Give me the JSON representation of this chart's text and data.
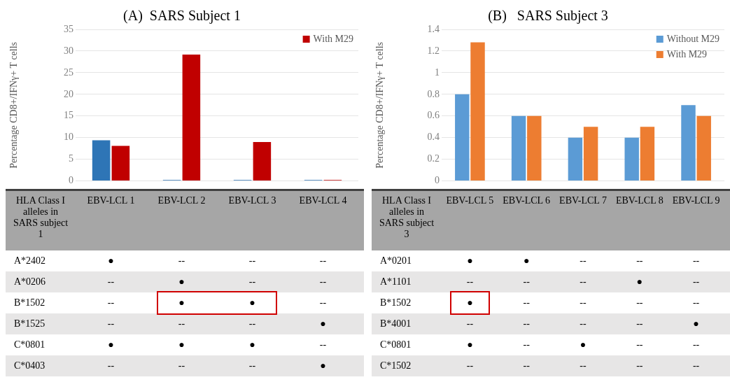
{
  "chart_data": [
    {
      "type": "bar",
      "title": "(A)  SARS Subject 1",
      "ylabel": "Percentage CD8+/IFNγ+ T cells",
      "categories": [
        null,
        null,
        null,
        null
      ],
      "series": [
        {
          "color": "#2e75b6",
          "values": [
            9.4,
            0.2,
            0.2,
            0.2
          ]
        },
        {
          "name": "With M29",
          "color": "#c00000",
          "values": [
            8.1,
            29.2,
            9.0,
            0.2
          ]
        }
      ],
      "ylim": [
        0,
        35
      ],
      "yticks": [
        0,
        5,
        10,
        15,
        20,
        25,
        30,
        35
      ],
      "grid": "y",
      "legend": "top right",
      "tick_labels": "y"
    },
    {
      "type": "other",
      "ylabel": "HLA Class I alleles in SARS subject 1",
      "categories": [
        "EBV-LCL 1",
        "EBV-LCL 2",
        "EBV-LCL 3",
        "EBV-LCL 4"
      ],
      "y_categories": [
        "A*2402",
        "A*0206",
        "B*1502",
        "B*1525",
        "C*0801",
        "C*0403"
      ],
      "cell_labels": [
        [
          "●",
          "--",
          "--",
          "--"
        ],
        [
          "--",
          "●",
          "--",
          "--"
        ],
        [
          "--",
          "●",
          "●",
          "--"
        ],
        [
          "--",
          "--",
          "--",
          "●"
        ],
        [
          "●",
          "●",
          "●",
          "--"
        ],
        [
          "--",
          "--",
          "--",
          "●"
        ]
      ]
    },
    {
      "type": "bar",
      "title": "(B)   SARS Subject 3",
      "ylabel": "Percentage CD8+/IFNγ+ T cells",
      "categories": [
        null,
        null,
        null,
        null,
        null
      ],
      "series": [
        {
          "name": "Without M29",
          "color": "#5b9bd5",
          "values": [
            0.8,
            0.6,
            0.4,
            0.4,
            0.7
          ]
        },
        {
          "name": "With M29",
          "color": "#ed7d31",
          "values": [
            1.28,
            0.6,
            0.5,
            0.5,
            0.6
          ]
        }
      ],
      "ylim": [
        0,
        1.4
      ],
      "yticks": [
        0,
        0.2,
        0.4,
        0.6,
        0.8,
        1,
        1.2,
        1.4
      ],
      "grid": "y",
      "legend": "top right",
      "tick_labels": "y"
    },
    {
      "type": "other",
      "ylabel": "HLA Class I alleles in SARS subject 3",
      "categories": [
        "EBV-LCL 5",
        "EBV-LCL 6",
        "EBV-LCL 7",
        "EBV-LCL 8",
        "EBV-LCL 9"
      ],
      "y_categories": [
        "A*0201",
        "A*1101",
        "B*1502",
        "B*4001",
        "C*0801",
        "C*1502"
      ],
      "cell_labels": [
        [
          "●",
          "●",
          "--",
          "--",
          "--"
        ],
        [
          "--",
          "--",
          "--",
          "●",
          "--"
        ],
        [
          "●",
          "--",
          "--",
          "--",
          "--"
        ],
        [
          "--",
          "--",
          "--",
          "--",
          "●"
        ],
        [
          "●",
          "--",
          "●",
          "--",
          "--"
        ],
        [
          "--",
          "--",
          "--",
          "--",
          "--"
        ]
      ]
    }
  ]
}
